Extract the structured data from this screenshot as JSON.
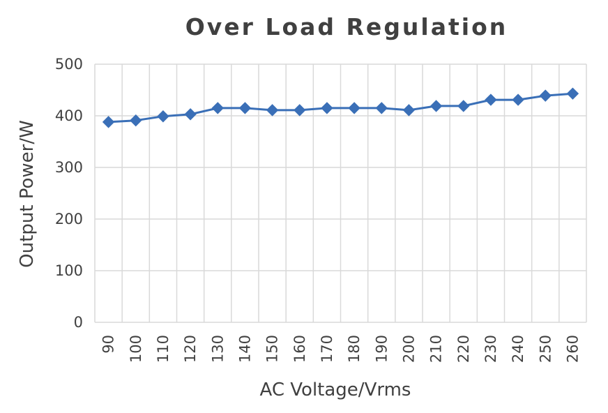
{
  "chart_data": {
    "type": "line",
    "title": "Over Load Regulation",
    "xlabel": "AC Voltage/Vrms",
    "ylabel": "Output Power/W",
    "x": [
      90,
      100,
      110,
      120,
      130,
      140,
      150,
      160,
      170,
      180,
      190,
      200,
      210,
      220,
      230,
      240,
      250,
      260
    ],
    "series": [
      {
        "values": [
          388,
          391,
          399,
          403,
          415,
          415,
          411,
          411,
          415,
          415,
          415,
          411,
          419,
          419,
          431,
          431,
          439,
          443
        ],
        "color": "#3a6fb7"
      }
    ],
    "ylim": [
      0,
      500
    ],
    "yticks": [
      0,
      100,
      200,
      300,
      400,
      500
    ],
    "xtick_labels": [
      "90",
      "100",
      "110",
      "120",
      "130",
      "140",
      "150",
      "160",
      "170",
      "180",
      "190",
      "200",
      "210",
      "220",
      "230",
      "240",
      "250",
      "260"
    ],
    "ytick_labels": [
      "0",
      "100",
      "200",
      "300",
      "400",
      "500"
    ],
    "grid": true,
    "marker": "diamond",
    "colors": {
      "line": "#3a6fb7",
      "grid": "#d9d9d9",
      "text": "#404040"
    }
  }
}
